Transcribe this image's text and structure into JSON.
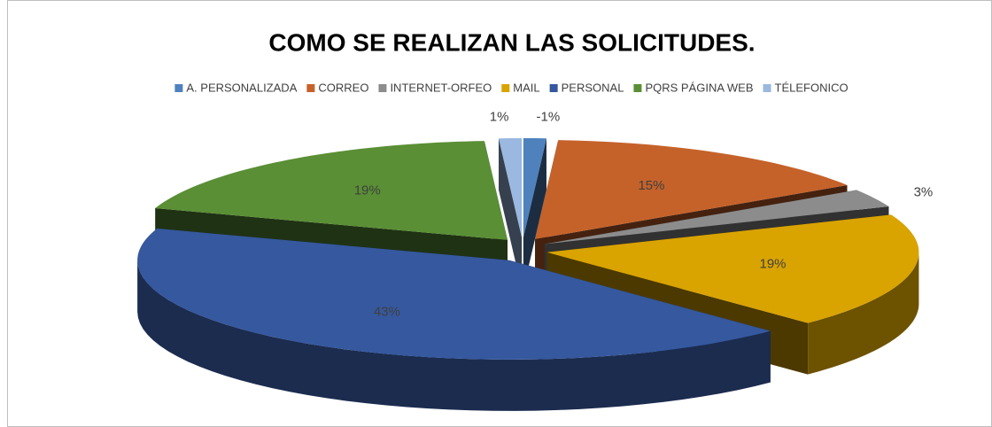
{
  "chart_data": {
    "type": "pie",
    "title": "COMO SE REALIZAN LAS SOLICITUDES.",
    "categories": [
      "A. PERSONALIZADA",
      "CORREO",
      "INTERNET-ORFEO",
      "MAIL",
      "PERSONAL",
      "PQRS PÁGINA WEB",
      "TÉLEFONICO"
    ],
    "values": [
      -1,
      15,
      3,
      19,
      43,
      19,
      1
    ],
    "value_labels": [
      "-1%",
      "15%",
      "3%",
      "19%",
      "43%",
      "19%",
      "1%"
    ],
    "colors": [
      "#4f81bd",
      "#c5622a",
      "#8c8c8c",
      "#d9a300",
      "#35589e",
      "#5a8f35",
      "#9ab8e0"
    ],
    "legend": "top"
  }
}
